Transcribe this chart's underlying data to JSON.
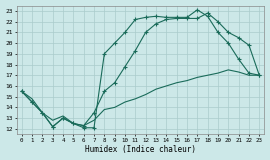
{
  "xlabel": "Humidex (Indice chaleur)",
  "bg_color": "#cce8e8",
  "line_color": "#1a6b5a",
  "grid_color": "#aacccc",
  "xlim": [
    -0.5,
    23.5
  ],
  "ylim": [
    11.5,
    23.5
  ],
  "xticks": [
    0,
    1,
    2,
    3,
    4,
    5,
    6,
    7,
    8,
    9,
    10,
    11,
    12,
    13,
    14,
    15,
    16,
    17,
    18,
    19,
    20,
    21,
    22,
    23
  ],
  "yticks": [
    12,
    13,
    14,
    15,
    16,
    17,
    18,
    19,
    20,
    21,
    22,
    23
  ],
  "line1_x": [
    0,
    1,
    2,
    3,
    4,
    5,
    6,
    7,
    8,
    9,
    10,
    11,
    12,
    13,
    14,
    15,
    16,
    17,
    18,
    19,
    20,
    21,
    22,
    23
  ],
  "line1_y": [
    15.5,
    14.5,
    13.5,
    12.2,
    13.0,
    12.5,
    12.1,
    12.1,
    19.0,
    20.0,
    21.0,
    22.2,
    22.4,
    22.5,
    22.4,
    22.4,
    22.4,
    23.1,
    22.5,
    21.0,
    20.0,
    18.5,
    17.2,
    17.0
  ],
  "line2_x": [
    0,
    1,
    2,
    3,
    4,
    5,
    6,
    7,
    8,
    9,
    10,
    11,
    12,
    13,
    14,
    15,
    16,
    17,
    18,
    19,
    20,
    21,
    22,
    23
  ],
  "line2_y": [
    15.5,
    14.5,
    13.5,
    12.2,
    13.0,
    12.5,
    12.3,
    13.5,
    15.5,
    16.3,
    17.8,
    19.3,
    21.0,
    21.8,
    22.2,
    22.3,
    22.3,
    22.3,
    22.8,
    22.0,
    21.0,
    20.5,
    19.8,
    17.0
  ],
  "line3_x": [
    0,
    1,
    2,
    3,
    4,
    5,
    6,
    7,
    8,
    9,
    10,
    11,
    12,
    13,
    14,
    15,
    16,
    17,
    18,
    19,
    20,
    21,
    22,
    23
  ],
  "line3_y": [
    15.5,
    14.8,
    13.5,
    12.8,
    13.2,
    12.5,
    12.3,
    12.8,
    13.8,
    14.0,
    14.5,
    14.8,
    15.2,
    15.7,
    16.0,
    16.3,
    16.5,
    16.8,
    17.0,
    17.2,
    17.5,
    17.3,
    17.0,
    17.0
  ]
}
